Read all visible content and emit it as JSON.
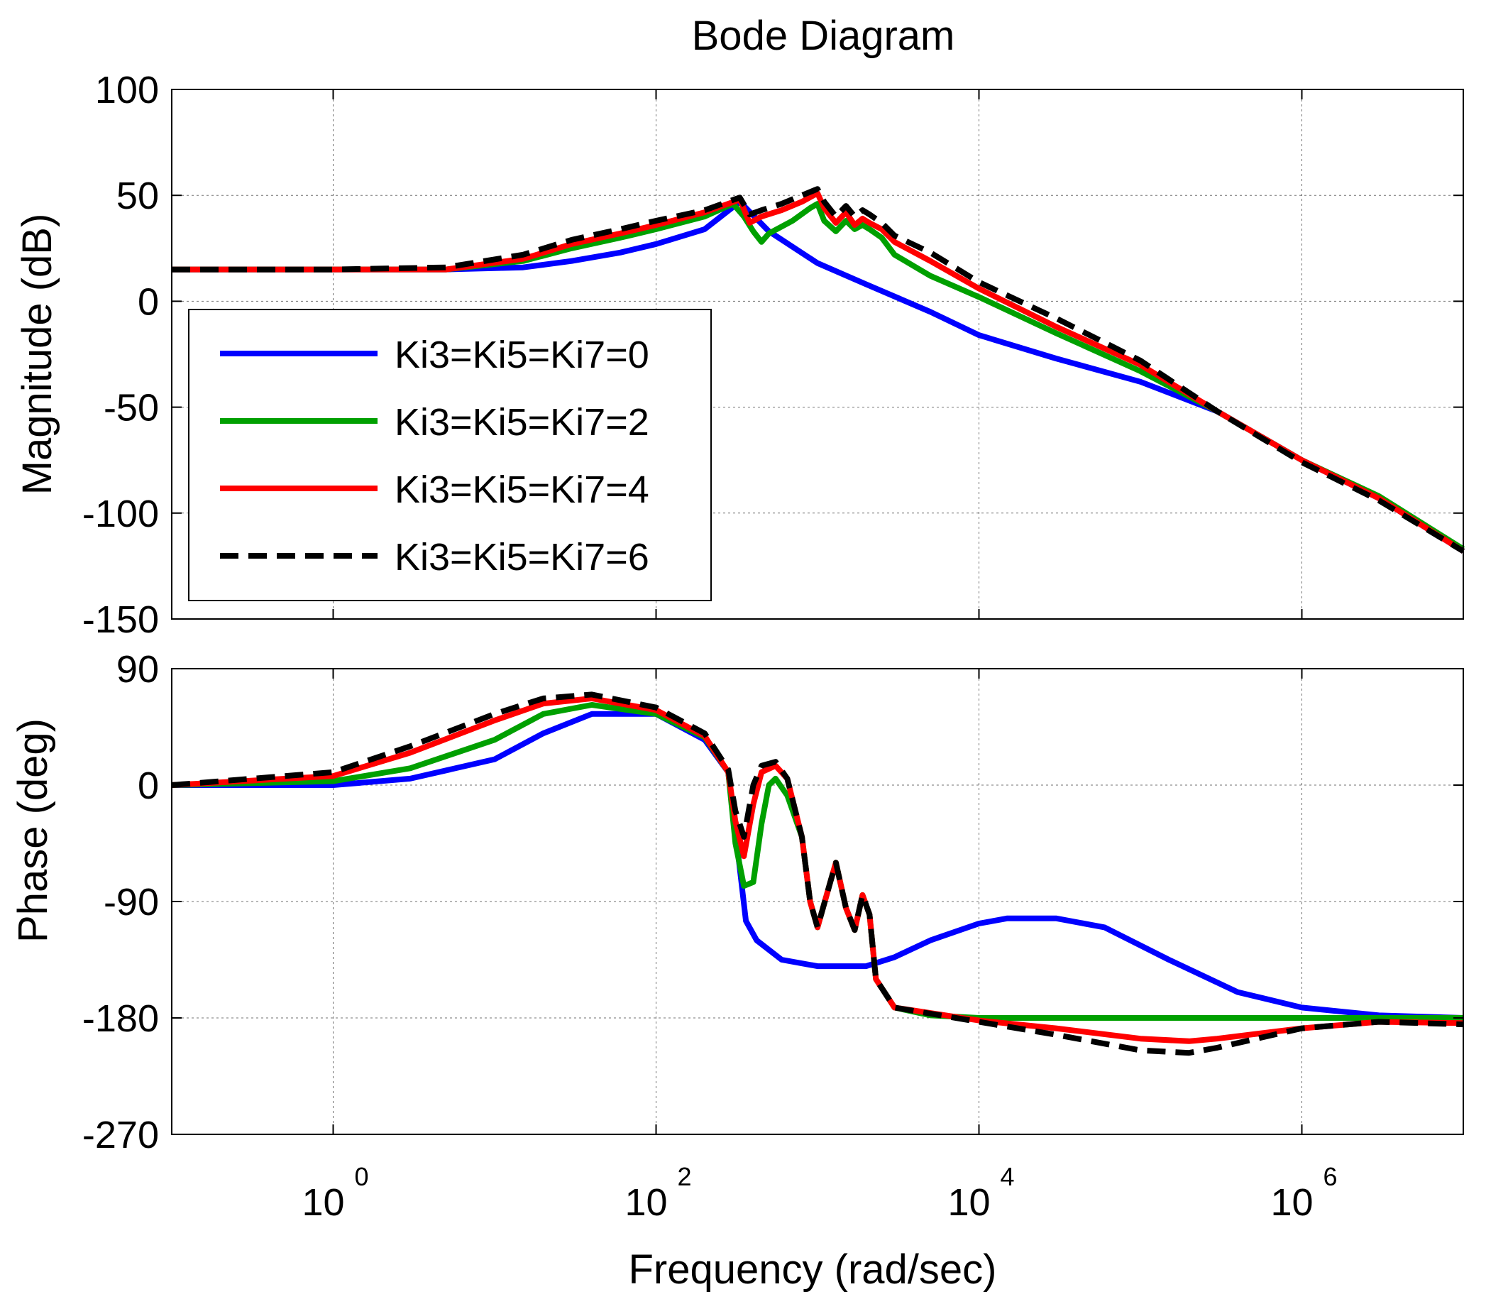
{
  "chart_data": {
    "type": "line",
    "title": "Bode Diagram",
    "xlabel": "Frequency (rad/sec)",
    "xscale": "log",
    "xlim": [
      0.1,
      10000000
    ],
    "xticks": [
      {
        "base": "10",
        "exp": "0",
        "value": 1
      },
      {
        "base": "10",
        "exp": "2",
        "value": 100
      },
      {
        "base": "10",
        "exp": "4",
        "value": 10000
      },
      {
        "base": "10",
        "exp": "6",
        "value": 1000000
      }
    ],
    "legend": {
      "position": "left-center of magnitude plot"
    },
    "colors": {
      "Ki3=Ki5=Ki7=0": "#0000ff",
      "Ki3=Ki5=Ki7=2": "#00a000",
      "Ki3=Ki5=Ki7=4": "#ff0000",
      "Ki3=Ki5=Ki7=6": "#000000"
    },
    "panels": [
      {
        "name": "magnitude",
        "ylabel": "Magnitude (dB)",
        "ylim": [
          -150,
          100
        ],
        "yticks": [
          "100",
          "50",
          "0",
          "-50",
          "-100",
          "-150"
        ],
        "grid": true,
        "series": [
          {
            "name": "Ki3=Ki5=Ki7=0",
            "style": "solid",
            "points": [
              [
                0.1,
                15
              ],
              [
                1,
                15
              ],
              [
                5,
                15
              ],
              [
                15,
                16
              ],
              [
                30,
                19
              ],
              [
                60,
                23
              ],
              [
                100,
                27
              ],
              [
                200,
                34
              ],
              [
                330,
                47
              ],
              [
                500,
                33
              ],
              [
                1000,
                18
              ],
              [
                2000,
                8
              ],
              [
                5000,
                -5
              ],
              [
                10000,
                -16
              ],
              [
                30000,
                -27
              ],
              [
                100000,
                -38
              ],
              [
                300000,
                -52
              ],
              [
                1000000,
                -75
              ],
              [
                3000000,
                -93
              ],
              [
                10000000,
                -118
              ]
            ]
          },
          {
            "name": "Ki3=Ki5=Ki7=2",
            "style": "solid",
            "points": [
              [
                0.1,
                15
              ],
              [
                1,
                15
              ],
              [
                5,
                15
              ],
              [
                15,
                19
              ],
              [
                30,
                25
              ],
              [
                60,
                30
              ],
              [
                100,
                34
              ],
              [
                200,
                40
              ],
              [
                300,
                46
              ],
              [
                350,
                40
              ],
              [
                400,
                33
              ],
              [
                450,
                28
              ],
              [
                500,
                32
              ],
              [
                700,
                38
              ],
              [
                900,
                44
              ],
              [
                1000,
                46
              ],
              [
                1100,
                38
              ],
              [
                1300,
                33
              ],
              [
                1500,
                38
              ],
              [
                1700,
                34
              ],
              [
                1900,
                36
              ],
              [
                2100,
                34
              ],
              [
                2500,
                30
              ],
              [
                3000,
                22
              ],
              [
                5000,
                12
              ],
              [
                10000,
                2
              ],
              [
                30000,
                -15
              ],
              [
                100000,
                -33
              ],
              [
                300000,
                -52
              ],
              [
                1000000,
                -75
              ],
              [
                3000000,
                -92
              ],
              [
                10000000,
                -117
              ]
            ]
          },
          {
            "name": "Ki3=Ki5=Ki7=4",
            "style": "solid",
            "points": [
              [
                0.1,
                15
              ],
              [
                1,
                15
              ],
              [
                5,
                15
              ],
              [
                15,
                20
              ],
              [
                30,
                27
              ],
              [
                60,
                32
              ],
              [
                100,
                36
              ],
              [
                200,
                42
              ],
              [
                330,
                48
              ],
              [
                380,
                37
              ],
              [
                450,
                40
              ],
              [
                600,
                43
              ],
              [
                800,
                47
              ],
              [
                1000,
                51
              ],
              [
                1100,
                44
              ],
              [
                1300,
                37
              ],
              [
                1500,
                42
              ],
              [
                1700,
                36
              ],
              [
                1900,
                39
              ],
              [
                2100,
                37
              ],
              [
                2500,
                34
              ],
              [
                3000,
                28
              ],
              [
                5000,
                19
              ],
              [
                10000,
                6
              ],
              [
                30000,
                -12
              ],
              [
                100000,
                -30
              ],
              [
                300000,
                -52
              ],
              [
                1000000,
                -75
              ],
              [
                3000000,
                -93
              ],
              [
                10000000,
                -118
              ]
            ]
          },
          {
            "name": "Ki3=Ki5=Ki7=6",
            "style": "dashed",
            "points": [
              [
                0.1,
                15
              ],
              [
                1,
                15
              ],
              [
                5,
                16
              ],
              [
                15,
                22
              ],
              [
                30,
                29
              ],
              [
                60,
                34
              ],
              [
                100,
                38
              ],
              [
                200,
                43
              ],
              [
                330,
                49
              ],
              [
                380,
                41
              ],
              [
                450,
                43
              ],
              [
                600,
                46
              ],
              [
                800,
                50
              ],
              [
                1000,
                53
              ],
              [
                1100,
                47
              ],
              [
                1300,
                40
              ],
              [
                1500,
                45
              ],
              [
                1700,
                40
              ],
              [
                1900,
                43
              ],
              [
                2100,
                41
              ],
              [
                2500,
                37
              ],
              [
                3000,
                31
              ],
              [
                5000,
                23
              ],
              [
                10000,
                9
              ],
              [
                30000,
                -8
              ],
              [
                100000,
                -28
              ],
              [
                300000,
                -52
              ],
              [
                1000000,
                -76
              ],
              [
                3000000,
                -94
              ],
              [
                10000000,
                -118
              ]
            ]
          }
        ]
      },
      {
        "name": "phase",
        "ylabel": "Phase (deg)",
        "ylim": [
          -270,
          90
        ],
        "yticks": [
          "90",
          "0",
          "-90",
          "-180",
          "-270"
        ],
        "grid": true,
        "series": [
          {
            "name": "Ki3=Ki5=Ki7=0",
            "style": "solid",
            "points": [
              [
                0.1,
                0
              ],
              [
                1,
                0
              ],
              [
                3,
                5
              ],
              [
                10,
                20
              ],
              [
                20,
                40
              ],
              [
                40,
                55
              ],
              [
                100,
                55
              ],
              [
                200,
                35
              ],
              [
                280,
                10
              ],
              [
                320,
                -50
              ],
              [
                360,
                -105
              ],
              [
                420,
                -120
              ],
              [
                600,
                -135
              ],
              [
                1000,
                -140
              ],
              [
                2000,
                -140
              ],
              [
                3000,
                -133
              ],
              [
                5000,
                -120
              ],
              [
                10000,
                -107
              ],
              [
                15000,
                -103
              ],
              [
                30000,
                -103
              ],
              [
                60000,
                -110
              ],
              [
                150000,
                -135
              ],
              [
                400000,
                -160
              ],
              [
                1000000,
                -172
              ],
              [
                3000000,
                -178
              ],
              [
                10000000,
                -180
              ]
            ]
          },
          {
            "name": "Ki3=Ki5=Ki7=2",
            "style": "solid",
            "points": [
              [
                0.1,
                0
              ],
              [
                1,
                3
              ],
              [
                3,
                13
              ],
              [
                10,
                35
              ],
              [
                20,
                55
              ],
              [
                40,
                62
              ],
              [
                100,
                55
              ],
              [
                200,
                37
              ],
              [
                280,
                10
              ],
              [
                310,
                -45
              ],
              [
                350,
                -78
              ],
              [
                400,
                -75
              ],
              [
                450,
                -30
              ],
              [
                500,
                0
              ],
              [
                550,
                5
              ],
              [
                650,
                -8
              ],
              [
                800,
                -40
              ],
              [
                900,
                -90
              ],
              [
                1000,
                -110
              ],
              [
                1200,
                -75
              ],
              [
                1300,
                -60
              ],
              [
                1500,
                -95
              ],
              [
                1700,
                -112
              ],
              [
                1900,
                -85
              ],
              [
                2100,
                -100
              ],
              [
                2300,
                -150
              ],
              [
                3000,
                -172
              ],
              [
                5000,
                -178
              ],
              [
                10000,
                -180
              ],
              [
                10000000,
                -180
              ]
            ]
          },
          {
            "name": "Ki3=Ki5=Ki7=4",
            "style": "solid",
            "points": [
              [
                0.1,
                0
              ],
              [
                1,
                7
              ],
              [
                3,
                25
              ],
              [
                10,
                50
              ],
              [
                20,
                63
              ],
              [
                40,
                67
              ],
              [
                100,
                58
              ],
              [
                200,
                38
              ],
              [
                280,
                10
              ],
              [
                310,
                -28
              ],
              [
                350,
                -55
              ],
              [
                400,
                -15
              ],
              [
                450,
                10
              ],
              [
                550,
                15
              ],
              [
                650,
                5
              ],
              [
                800,
                -40
              ],
              [
                900,
                -90
              ],
              [
                1000,
                -110
              ],
              [
                1200,
                -75
              ],
              [
                1300,
                -60
              ],
              [
                1500,
                -95
              ],
              [
                1700,
                -112
              ],
              [
                1900,
                -85
              ],
              [
                2100,
                -100
              ],
              [
                2300,
                -150
              ],
              [
                3000,
                -172
              ],
              [
                10000,
                -182
              ],
              [
                30000,
                -188
              ],
              [
                100000,
                -196
              ],
              [
                200000,
                -198
              ],
              [
                300000,
                -196
              ],
              [
                1000000,
                -188
              ],
              [
                3000000,
                -183
              ],
              [
                10000000,
                -184
              ]
            ]
          },
          {
            "name": "Ki3=Ki5=Ki7=6",
            "style": "dashed",
            "points": [
              [
                0.1,
                0
              ],
              [
                1,
                10
              ],
              [
                3,
                30
              ],
              [
                10,
                55
              ],
              [
                20,
                67
              ],
              [
                40,
                70
              ],
              [
                100,
                60
              ],
              [
                200,
                40
              ],
              [
                280,
                12
              ],
              [
                310,
                -20
              ],
              [
                350,
                -40
              ],
              [
                400,
                0
              ],
              [
                450,
                15
              ],
              [
                550,
                18
              ],
              [
                650,
                5
              ],
              [
                800,
                -40
              ],
              [
                900,
                -90
              ],
              [
                1000,
                -110
              ],
              [
                1200,
                -75
              ],
              [
                1300,
                -60
              ],
              [
                1500,
                -95
              ],
              [
                1700,
                -112
              ],
              [
                1900,
                -85
              ],
              [
                2100,
                -100
              ],
              [
                2300,
                -150
              ],
              [
                3000,
                -172
              ],
              [
                10000,
                -183
              ],
              [
                30000,
                -193
              ],
              [
                100000,
                -205
              ],
              [
                200000,
                -207
              ],
              [
                300000,
                -203
              ],
              [
                1000000,
                -188
              ],
              [
                3000000,
                -183
              ],
              [
                10000000,
                -185
              ]
            ]
          }
        ]
      }
    ]
  }
}
